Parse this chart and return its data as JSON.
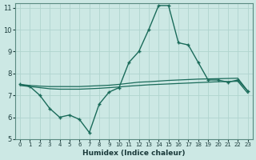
{
  "xlabel": "Humidex (Indice chaleur)",
  "xlim": [
    -0.5,
    23.5
  ],
  "ylim": [
    5,
    11.2
  ],
  "yticks": [
    5,
    6,
    7,
    8,
    9,
    10,
    11
  ],
  "xticks": [
    0,
    1,
    2,
    3,
    4,
    5,
    6,
    7,
    8,
    9,
    10,
    11,
    12,
    13,
    14,
    15,
    16,
    17,
    18,
    19,
    20,
    21,
    22,
    23
  ],
  "bg_color": "#cce8e4",
  "line_color": "#1a6b5a",
  "grid_color": "#b0d4ce",
  "line1_x": [
    0,
    1,
    2,
    3,
    4,
    5,
    6,
    7,
    8,
    9,
    10,
    11,
    12,
    13,
    14,
    15,
    16,
    17,
    18,
    19,
    20,
    21,
    22,
    23
  ],
  "line1_y": [
    7.5,
    7.4,
    7.0,
    6.4,
    6.0,
    6.1,
    5.9,
    5.3,
    6.6,
    7.15,
    7.35,
    8.5,
    9.0,
    10.0,
    11.1,
    11.1,
    9.4,
    9.3,
    8.5,
    7.7,
    7.7,
    7.6,
    7.7,
    7.2
  ],
  "line2_x": [
    0,
    1,
    2,
    3,
    4,
    5,
    6,
    7,
    8,
    9,
    10,
    11,
    12,
    13,
    14,
    15,
    16,
    17,
    18,
    19,
    20,
    21,
    22,
    23
  ],
  "line2_y": [
    7.5,
    7.45,
    7.42,
    7.4,
    7.4,
    7.4,
    7.4,
    7.42,
    7.44,
    7.46,
    7.5,
    7.55,
    7.6,
    7.62,
    7.65,
    7.68,
    7.7,
    7.72,
    7.74,
    7.75,
    7.76,
    7.77,
    7.78,
    7.2
  ],
  "line3_x": [
    0,
    1,
    2,
    3,
    4,
    5,
    6,
    7,
    8,
    9,
    10,
    11,
    12,
    13,
    14,
    15,
    16,
    17,
    18,
    19,
    20,
    21,
    22,
    23
  ],
  "line3_y": [
    7.45,
    7.4,
    7.35,
    7.3,
    7.28,
    7.28,
    7.28,
    7.3,
    7.32,
    7.35,
    7.38,
    7.42,
    7.45,
    7.48,
    7.5,
    7.52,
    7.54,
    7.56,
    7.58,
    7.6,
    7.62,
    7.63,
    7.64,
    7.1
  ]
}
